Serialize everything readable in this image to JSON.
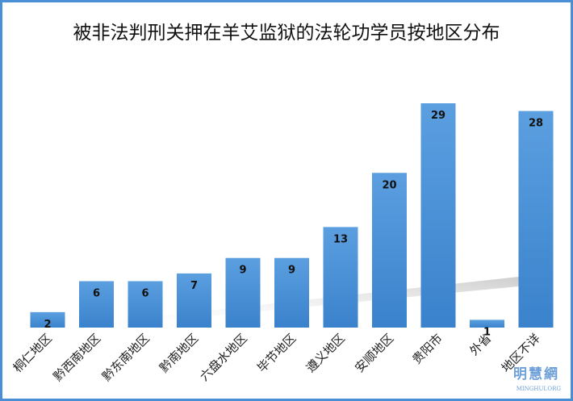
{
  "chart_data": {
    "type": "bar",
    "title": "被非法判刑关押在羊艾监狱的法轮功学员按地区分布",
    "categories": [
      "桐仁地区",
      "黔西南地区",
      "黔东南地区",
      "黔南地区",
      "六盘水地区",
      "毕节地区",
      "遵义地区",
      "安顺地区",
      "贵阳市",
      "外省",
      "地区不详"
    ],
    "values": [
      2,
      6,
      6,
      7,
      9,
      9,
      13,
      20,
      29,
      1,
      28
    ],
    "xlabel": "",
    "ylabel": "",
    "ylim": [
      0,
      29
    ],
    "grid": false,
    "data_labels": true,
    "bar_color": "#3d87d0"
  },
  "watermark": {
    "text": "明慧網",
    "sub": "MINGHUI.ORG"
  }
}
